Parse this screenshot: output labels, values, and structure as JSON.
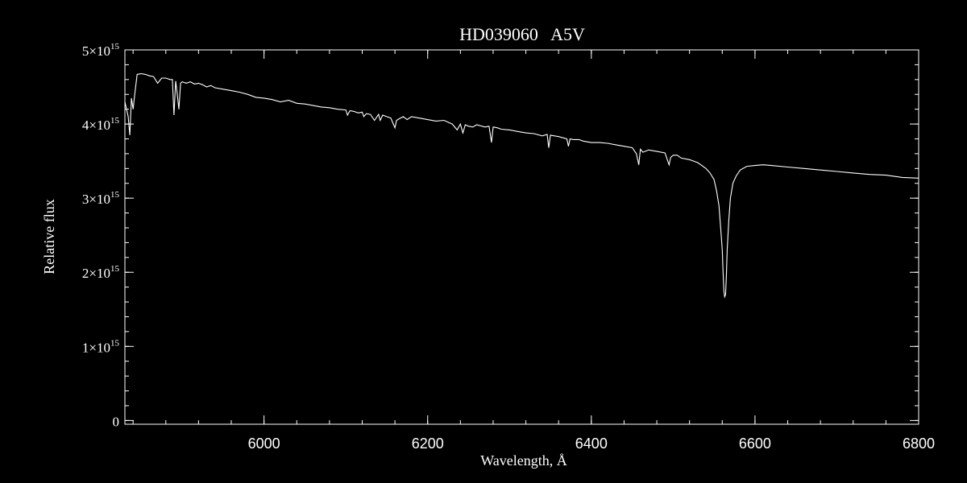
{
  "chart_data": {
    "type": "line",
    "title": "HD039060   A5V",
    "xlabel": "Wavelength, Å",
    "ylabel": "Relative flux",
    "xlim": [
      5830,
      6800
    ],
    "ylim": [
      -50000000000000.0,
      5000000000000000.0
    ],
    "xticks": [
      6000,
      6200,
      6400,
      6600,
      6800
    ],
    "xtick_labels": [
      "6000",
      "6200",
      "6400",
      "6600",
      "6800"
    ],
    "yticks": [
      0,
      1000000000000000.0,
      2000000000000000.0,
      3000000000000000.0,
      4000000000000000.0,
      5000000000000000.0
    ],
    "ytick_labels": [
      {
        "mantissa": "0",
        "exp": ""
      },
      {
        "mantissa": "1×10",
        "exp": "15"
      },
      {
        "mantissa": "2×10",
        "exp": "15"
      },
      {
        "mantissa": "3×10",
        "exp": "15"
      },
      {
        "mantissa": "4×10",
        "exp": "15"
      },
      {
        "mantissa": "5×10",
        "exp": "15"
      }
    ],
    "grid": false,
    "series": [
      {
        "x": [
          5830,
          5834,
          5836,
          5838,
          5840,
          5842,
          5845,
          5850,
          5855,
          5860,
          5865,
          5870,
          5875,
          5880,
          5885,
          5888,
          5890,
          5892,
          5894,
          5896,
          5898,
          5900,
          5905,
          5910,
          5915,
          5920,
          5925,
          5930,
          5935,
          5940,
          5950,
          5960,
          5970,
          5980,
          5990,
          6000,
          6010,
          6020,
          6030,
          6040,
          6050,
          6060,
          6070,
          6080,
          6090,
          6100,
          6102,
          6105,
          6110,
          6115,
          6120,
          6122,
          6125,
          6130,
          6135,
          6140,
          6142,
          6145,
          6150,
          6155,
          6158,
          6160,
          6162,
          6165,
          6170,
          6175,
          6180,
          6190,
          6200,
          6210,
          6220,
          6230,
          6236,
          6240,
          6243,
          6246,
          6250,
          6255,
          6260,
          6270,
          6275,
          6278,
          6280,
          6285,
          6290,
          6300,
          6310,
          6320,
          6330,
          6340,
          6346,
          6348,
          6350,
          6355,
          6360,
          6370,
          6372,
          6374,
          6378,
          6385,
          6390,
          6400,
          6410,
          6420,
          6430,
          6440,
          6450,
          6455,
          6458,
          6460,
          6463,
          6470,
          6480,
          6490,
          6495,
          6497,
          6500,
          6505,
          6510,
          6520,
          6525,
          6530,
          6535,
          6540,
          6545,
          6550,
          6553,
          6556,
          6558,
          6560,
          6561,
          6562,
          6563,
          6564,
          6565,
          6566,
          6568,
          6570,
          6573,
          6577,
          6582,
          6590,
          6600,
          6610,
          6620,
          6640,
          6660,
          6680,
          6700,
          6720,
          6740,
          6760,
          6780,
          6800
        ],
        "y": [
          4300000000000000.0,
          4100000000000000.0,
          3850000000000000.0,
          4350000000000000.0,
          4200000000000000.0,
          4400000000000000.0,
          4670000000000000.0,
          4680000000000000.0,
          4670000000000000.0,
          4650000000000000.0,
          4640000000000000.0,
          4550000000000000.0,
          4620000000000000.0,
          4620000000000000.0,
          4600000000000000.0,
          4600000000000000.0,
          4120000000000000.0,
          4580000000000000.0,
          4400000000000000.0,
          4200000000000000.0,
          4550000000000000.0,
          4570000000000000.0,
          4550000000000000.0,
          4570000000000000.0,
          4540000000000000.0,
          4550000000000000.0,
          4530000000000000.0,
          4500000000000000.0,
          4520000000000000.0,
          4490000000000000.0,
          4470000000000000.0,
          4450000000000000.0,
          4430000000000000.0,
          4400000000000000.0,
          4360000000000000.0,
          4350000000000000.0,
          4330000000000000.0,
          4300000000000000.0,
          4320000000000000.0,
          4280000000000000.0,
          4270000000000000.0,
          4250000000000000.0,
          4230000000000000.0,
          4220000000000000.0,
          4200000000000000.0,
          4190000000000000.0,
          4120000000000000.0,
          4180000000000000.0,
          4170000000000000.0,
          4150000000000000.0,
          4160000000000000.0,
          4100000000000000.0,
          4140000000000000.0,
          4130000000000000.0,
          4050000000000000.0,
          4130000000000000.0,
          4050000000000000.0,
          4120000000000000.0,
          4100000000000000.0,
          4080000000000000.0,
          4000000000000000.0,
          3950000000000000.0,
          4050000000000000.0,
          4070000000000000.0,
          4100000000000000.0,
          4060000000000000.0,
          4100000000000000.0,
          4080000000000000.0,
          4060000000000000.0,
          4040000000000000.0,
          4050000000000000.0,
          4000000000000000.0,
          3920000000000000.0,
          4000000000000000.0,
          3880000000000000.0,
          3990000000000000.0,
          3970000000000000.0,
          3960000000000000.0,
          3990000000000000.0,
          3960000000000000.0,
          3970000000000000.0,
          3750000000000000.0,
          3960000000000000.0,
          3950000000000000.0,
          3930000000000000.0,
          3920000000000000.0,
          3900000000000000.0,
          3880000000000000.0,
          3870000000000000.0,
          3840000000000000.0,
          3860000000000000.0,
          3680000000000000.0,
          3850000000000000.0,
          3840000000000000.0,
          3830000000000000.0,
          3800000000000000.0,
          3700000000000000.0,
          3800000000000000.0,
          3790000000000000.0,
          3790000000000000.0,
          3770000000000000.0,
          3750000000000000.0,
          3750000000000000.0,
          3740000000000000.0,
          3720000000000000.0,
          3700000000000000.0,
          3680000000000000.0,
          3600000000000000.0,
          3450000000000000.0,
          3660000000000000.0,
          3620000000000000.0,
          3650000000000000.0,
          3630000000000000.0,
          3610000000000000.0,
          3450000000000000.0,
          3550000000000000.0,
          3580000000000000.0,
          3580000000000000.0,
          3540000000000000.0,
          3520000000000000.0,
          3500000000000000.0,
          3480000000000000.0,
          3440000000000000.0,
          3400000000000000.0,
          3340000000000000.0,
          3250000000000000.0,
          3100000000000000.0,
          2900000000000000.0,
          2600000000000000.0,
          2300000000000000.0,
          2000000000000000.0,
          1750000000000000.0,
          1670000000000000.0,
          1700000000000000.0,
          1950000000000000.0,
          2300000000000000.0,
          2700000000000000.0,
          3000000000000000.0,
          3200000000000000.0,
          3300000000000000.0,
          3380000000000000.0,
          3430000000000000.0,
          3440000000000000.0,
          3450000000000000.0,
          3440000000000000.0,
          3420000000000000.0,
          3400000000000000.0,
          3380000000000000.0,
          3360000000000000.0,
          3340000000000000.0,
          3320000000000000.0,
          3310000000000000.0,
          3280000000000000.0,
          3270000000000000.0
        ]
      }
    ]
  }
}
